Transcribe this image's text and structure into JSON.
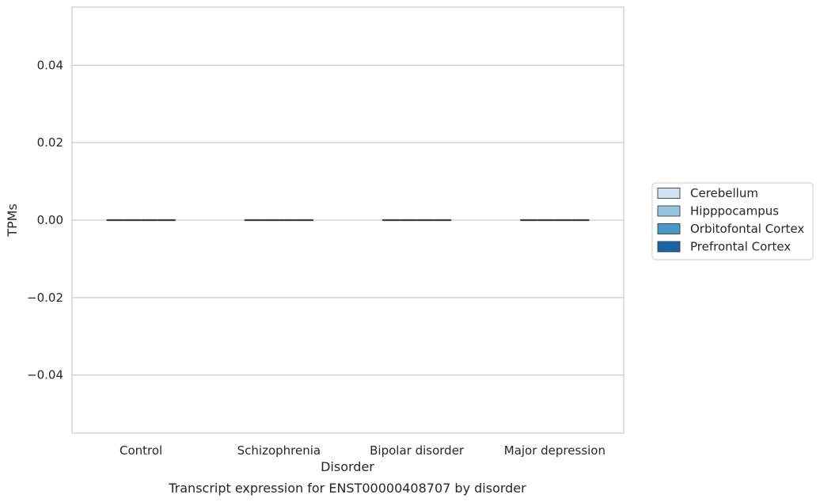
{
  "chart_data": {
    "type": "box",
    "caption": "Transcript expression for ENST00000408707 by disorder",
    "xlabel": "Disorder",
    "ylabel": "TPMs",
    "ylim": [
      -0.055,
      0.055
    ],
    "yticks": [
      -0.04,
      -0.02,
      0.0,
      0.02,
      0.04
    ],
    "ytick_labels": [
      "−0.04",
      "−0.02",
      "0.00",
      "0.02",
      "0.04"
    ],
    "grid": true,
    "legend_position": "right",
    "categories": [
      "Control",
      "Schizophrenia",
      "Bipolar disorder",
      "Major depression"
    ],
    "series": [
      {
        "name": "Cerebellum",
        "color": "#d0e1f2",
        "values": [
          0,
          0,
          0,
          0
        ]
      },
      {
        "name": "Hipppocampus",
        "color": "#94c4df",
        "values": [
          0,
          0,
          0,
          0
        ]
      },
      {
        "name": "Orbitofontal Cortex",
        "color": "#4a98c9",
        "values": [
          0,
          0,
          0,
          0
        ]
      },
      {
        "name": "Prefrontal Cortex",
        "color": "#1764ab",
        "values": [
          0,
          0,
          0,
          0
        ]
      }
    ]
  }
}
